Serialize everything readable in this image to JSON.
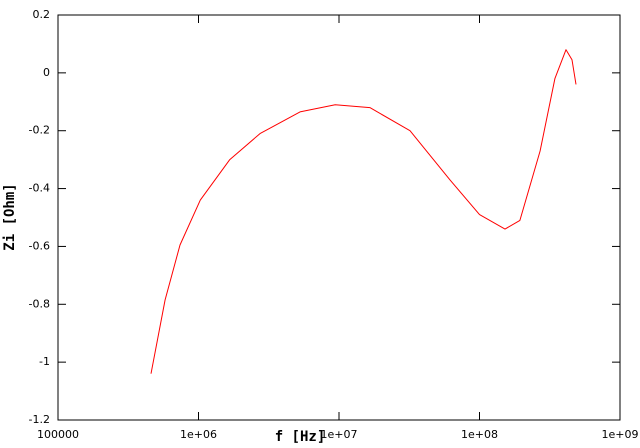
{
  "chart_data": {
    "type": "line",
    "xlabel": "f  [Hz]",
    "ylabel": "Zi  [Ohm]",
    "xscale": "log",
    "x": [
      459000,
      578000,
      738000,
      1030000,
      1670000,
      2740000,
      5280000,
      9400000,
      16600000,
      32000000,
      61700000,
      100000000,
      152000000,
      194000000,
      270000000,
      344000000,
      413000000,
      455000000,
      486000000
    ],
    "series": [
      {
        "color": "#ff0000",
        "values": [
          -1.04,
          -0.785,
          -0.595,
          -0.44,
          -0.3,
          -0.21,
          -0.135,
          -0.11,
          -0.12,
          -0.2,
          -0.37,
          -0.49,
          -0.54,
          -0.51,
          -0.27,
          -0.02,
          0.08,
          0.045,
          -0.04
        ]
      }
    ],
    "xlim": [
      100000,
      1000000000
    ],
    "xticks": [
      100000,
      {
        "value": 1000000,
        "label": "1e+06"
      },
      {
        "value": 10000000,
        "label": "1e+07"
      },
      {
        "value": 100000000,
        "label": "1e+08"
      },
      {
        "value": 1000000000,
        "label": "1e+09"
      }
    ],
    "ylim": [
      -1.2,
      0.2
    ],
    "yticks": [
      0.2,
      0,
      -0.2,
      -0.4,
      -0.6,
      -0.8,
      -1,
      -1.2
    ]
  }
}
